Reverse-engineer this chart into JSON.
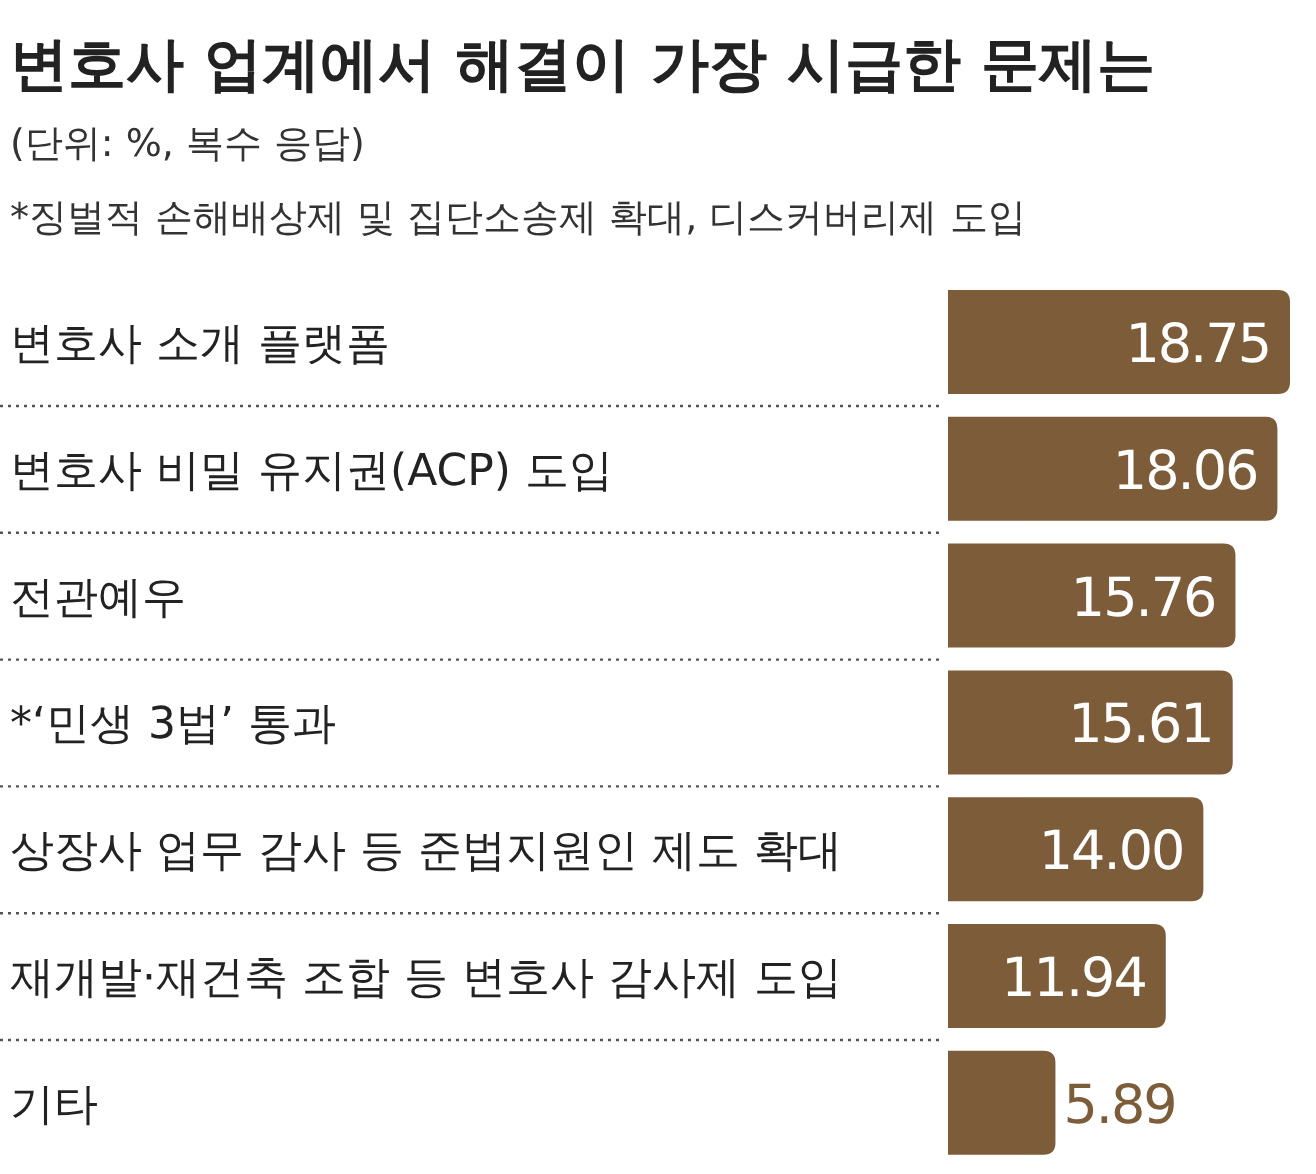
{
  "chart_data": {
    "type": "bar",
    "orientation": "horizontal",
    "title": "변호사 업계에서 해결이 가장 시급한 문제는",
    "subtitle": "(단위: %, 복수 응답)",
    "annotations": [
      "*징벌적 손해배상제 및 집단소송제 확대, 디스커버리제 도입"
    ],
    "categories": [
      "변호사 소개 플랫폼",
      "변호사 비밀 유지권(ACP) 도입",
      "전관예우",
      "*‘민생 3법’ 통과",
      "상장사 업무 감사 등 준법지원인 제도 확대",
      "재개발·재건축 조합 등 변호사 감사제 도입",
      "기타"
    ],
    "values": [
      18.75,
      18.06,
      15.76,
      15.61,
      14.0,
      11.94,
      5.89
    ],
    "value_labels": [
      "18.75",
      "18.06",
      "15.76",
      "15.61",
      "14.00",
      "11.94",
      "5.89"
    ],
    "color": "#7d5c39"
  }
}
